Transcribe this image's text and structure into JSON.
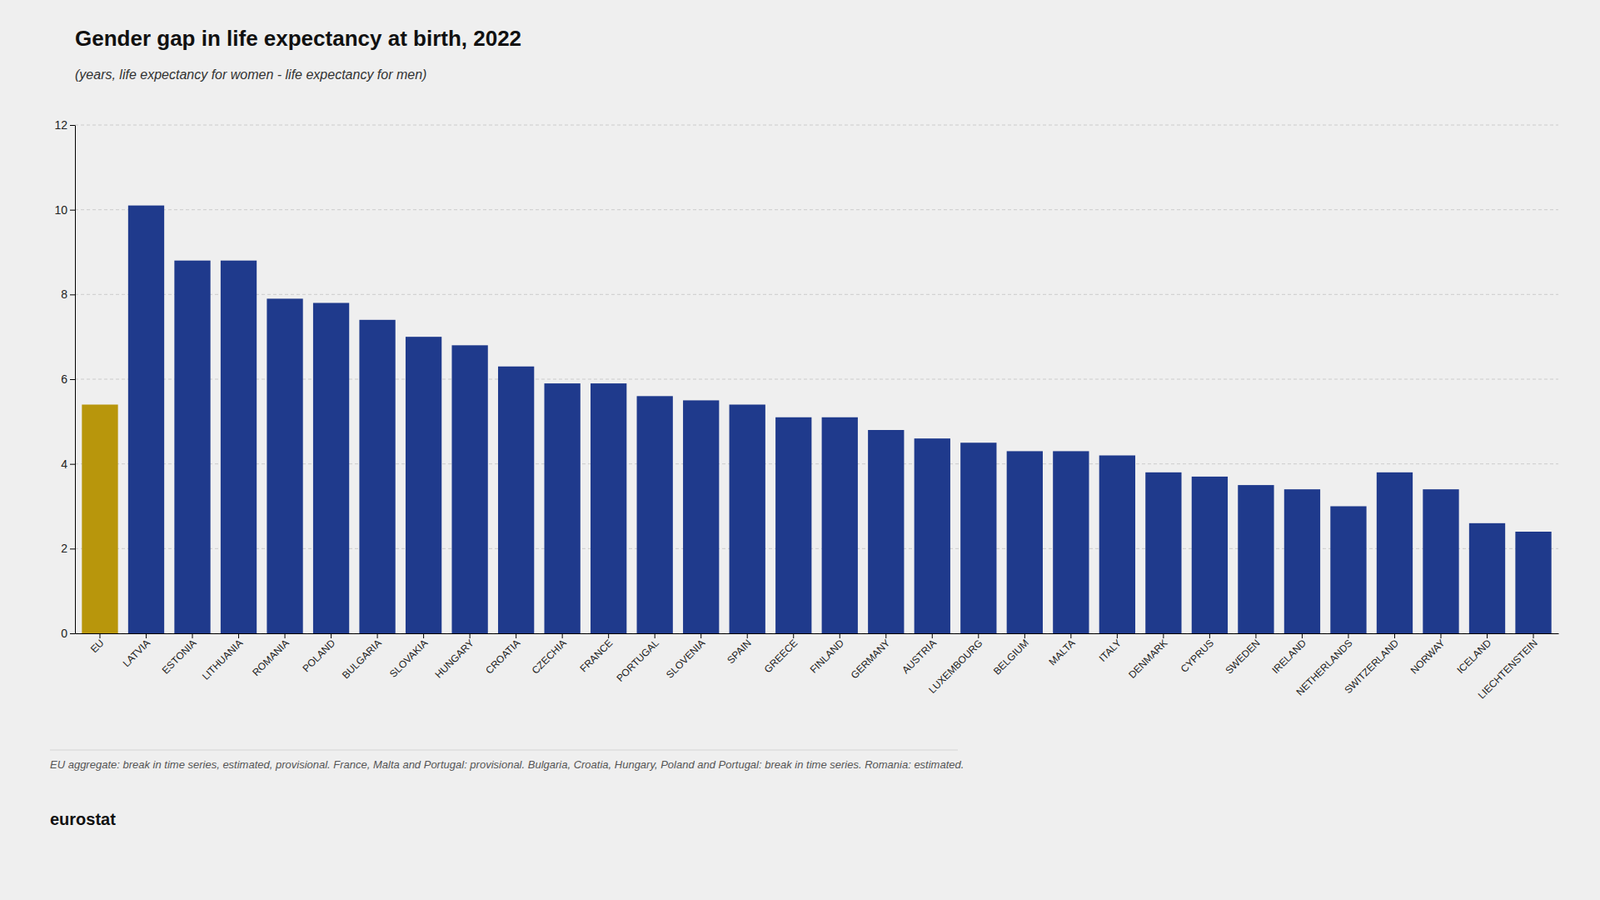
{
  "chart_data": {
    "type": "bar",
    "title": "Gender gap in life expectancy at birth, 2022",
    "subtitle": "(years, life expectancy for women - life expectancy for men)",
    "categories": [
      "EU",
      "LATVIA",
      "ESTONIA",
      "LITHUANIA",
      "ROMANIA",
      "POLAND",
      "BULGARIA",
      "SLOVAKIA",
      "HUNGARY",
      "CROATIA",
      "CZECHIA",
      "FRANCE",
      "PORTUGAL",
      "SLOVENIA",
      "SPAIN",
      "GREECE",
      "FINLAND",
      "GERMANY",
      "AUSTRIA",
      "LUXEMBOURG",
      "BELGIUM",
      "MALTA",
      "ITALY",
      "DENMARK",
      "CYPRUS",
      "SWEDEN",
      "IRELAND",
      "NETHERLANDS",
      "SWITZERLAND",
      "NORWAY",
      "ICELAND",
      "LIECHTENSTEIN"
    ],
    "values": [
      5.4,
      10.1,
      8.8,
      8.8,
      7.9,
      7.8,
      7.4,
      7.0,
      6.8,
      6.3,
      5.9,
      5.9,
      5.6,
      5.5,
      5.4,
      5.1,
      5.1,
      4.8,
      4.6,
      4.5,
      4.3,
      4.3,
      4.2,
      3.8,
      3.7,
      3.5,
      3.4,
      3.0,
      3.8,
      3.4,
      2.6,
      2.4
    ],
    "colors": [
      "#B8960C",
      "#1F3A8C",
      "#1F3A8C",
      "#1F3A8C",
      "#1F3A8C",
      "#1F3A8C",
      "#1F3A8C",
      "#1F3A8C",
      "#1F3A8C",
      "#1F3A8C",
      "#1F3A8C",
      "#1F3A8C",
      "#1F3A8C",
      "#1F3A8C",
      "#1F3A8C",
      "#1F3A8C",
      "#1F3A8C",
      "#1F3A8C",
      "#1F3A8C",
      "#1F3A8C",
      "#1F3A8C",
      "#1F3A8C",
      "#1F3A8C",
      "#1F3A8C",
      "#1F3A8C",
      "#1F3A8C",
      "#1F3A8C",
      "#1F3A8C",
      "#1F3A8C",
      "#1F3A8C",
      "#1F3A8C",
      "#1F3A8C"
    ],
    "ylim": [
      0,
      12
    ],
    "yticks": [
      0,
      2,
      4,
      6,
      8,
      10,
      12
    ],
    "grid": true,
    "footnote": "EU aggregate: break in time series, estimated, provisional. France, Malta and Portugal: provisional. Bulgaria, Croatia, Hungary, Poland and Portugal: break in time series. Romania: estimated.",
    "annotations": [
      "eurostat"
    ]
  }
}
